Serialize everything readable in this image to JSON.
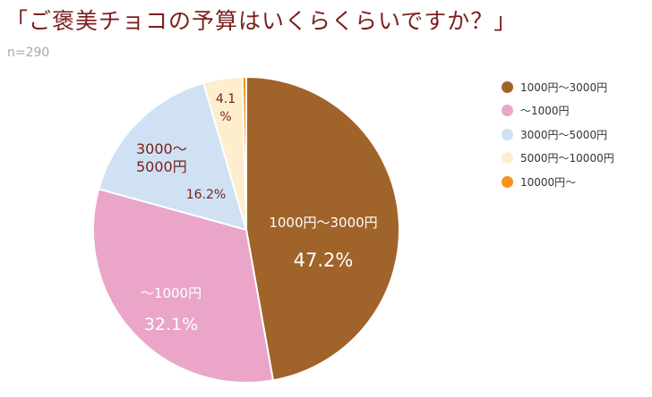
{
  "title": "「ご褒美チョコの予算はいくらくらいですか？」",
  "sample": "n=290",
  "chart_data": {
    "type": "pie",
    "title": "「ご褒美チョコの予算はいくらくらいですか？」",
    "start_angle": 0,
    "direction": "clockwise",
    "legend_position": "right",
    "slices": [
      {
        "label": "1000円～3000円",
        "value": 47.2,
        "value_label": "47.2%",
        "color": "#a0632a",
        "label_color": "#ffffff"
      },
      {
        "label": "～1000円",
        "value": 32.1,
        "value_label": "32.1%",
        "color": "#eaa5c8",
        "label_color": "#ffffff"
      },
      {
        "label": "3000～\n5000円",
        "value": 16.2,
        "value_label": "16.2%",
        "color": "#cfe1f3",
        "label_color": "#7a1f1a"
      },
      {
        "label": "",
        "value": 4.1,
        "value_label": "4.1\n%",
        "color": "#fdefcd",
        "label_color": "#7a1f1a"
      },
      {
        "label": "",
        "value": 0.4,
        "value_label": "",
        "color": "#f7941d",
        "label_color": "#7a1f1a"
      }
    ],
    "legend": [
      {
        "label": "1000円～3000円",
        "color": "#a0632a"
      },
      {
        "label": "～1000円",
        "color": "#eaa5c8"
      },
      {
        "label": "3000円～5000円",
        "color": "#cfe1f3"
      },
      {
        "label": "5000円～10000円",
        "color": "#fdefcd"
      },
      {
        "label": "10000円～",
        "color": "#f7941d"
      }
    ]
  }
}
